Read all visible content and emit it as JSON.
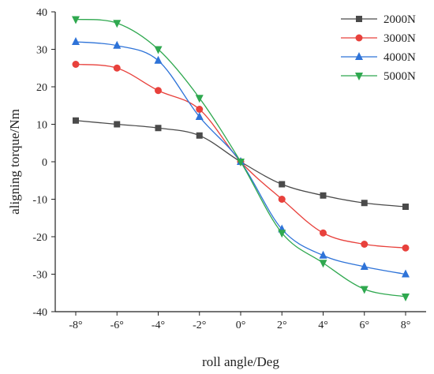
{
  "chart_data": {
    "type": "line",
    "xlabel": "roll angle/Deg",
    "ylabel": "aligning torque/Nm",
    "x": [
      -8,
      -6,
      -4,
      -2,
      0,
      2,
      4,
      6,
      8
    ],
    "x_tick_labels": [
      "-8°",
      "-6°",
      "-4°",
      "-2°",
      "0°",
      "2°",
      "4°",
      "6°",
      "8°"
    ],
    "xlim": [
      -8,
      8
    ],
    "ylim": [
      -40,
      40
    ],
    "y_ticks": [
      -40,
      -30,
      -20,
      -10,
      0,
      10,
      20,
      30,
      40
    ],
    "grid": false,
    "legend_position": "top-right",
    "series": [
      {
        "name": "2000N",
        "color": "#4a4a4a",
        "marker": "square",
        "values": [
          11,
          10,
          9,
          7,
          0,
          -6,
          -9,
          -11,
          -12
        ]
      },
      {
        "name": "3000N",
        "color": "#e8413c",
        "marker": "circle",
        "values": [
          26,
          25,
          19,
          14,
          0,
          -10,
          -19,
          -22,
          -23
        ]
      },
      {
        "name": "4000N",
        "color": "#2e73d8",
        "marker": "triangle-up",
        "values": [
          32,
          31,
          27,
          12,
          0,
          -18,
          -25,
          -28,
          -30
        ]
      },
      {
        "name": "5000N",
        "color": "#2fa84f",
        "marker": "triangle-down",
        "values": [
          38,
          37,
          30,
          17,
          0,
          -19,
          -27,
          -34,
          -36
        ]
      }
    ]
  }
}
